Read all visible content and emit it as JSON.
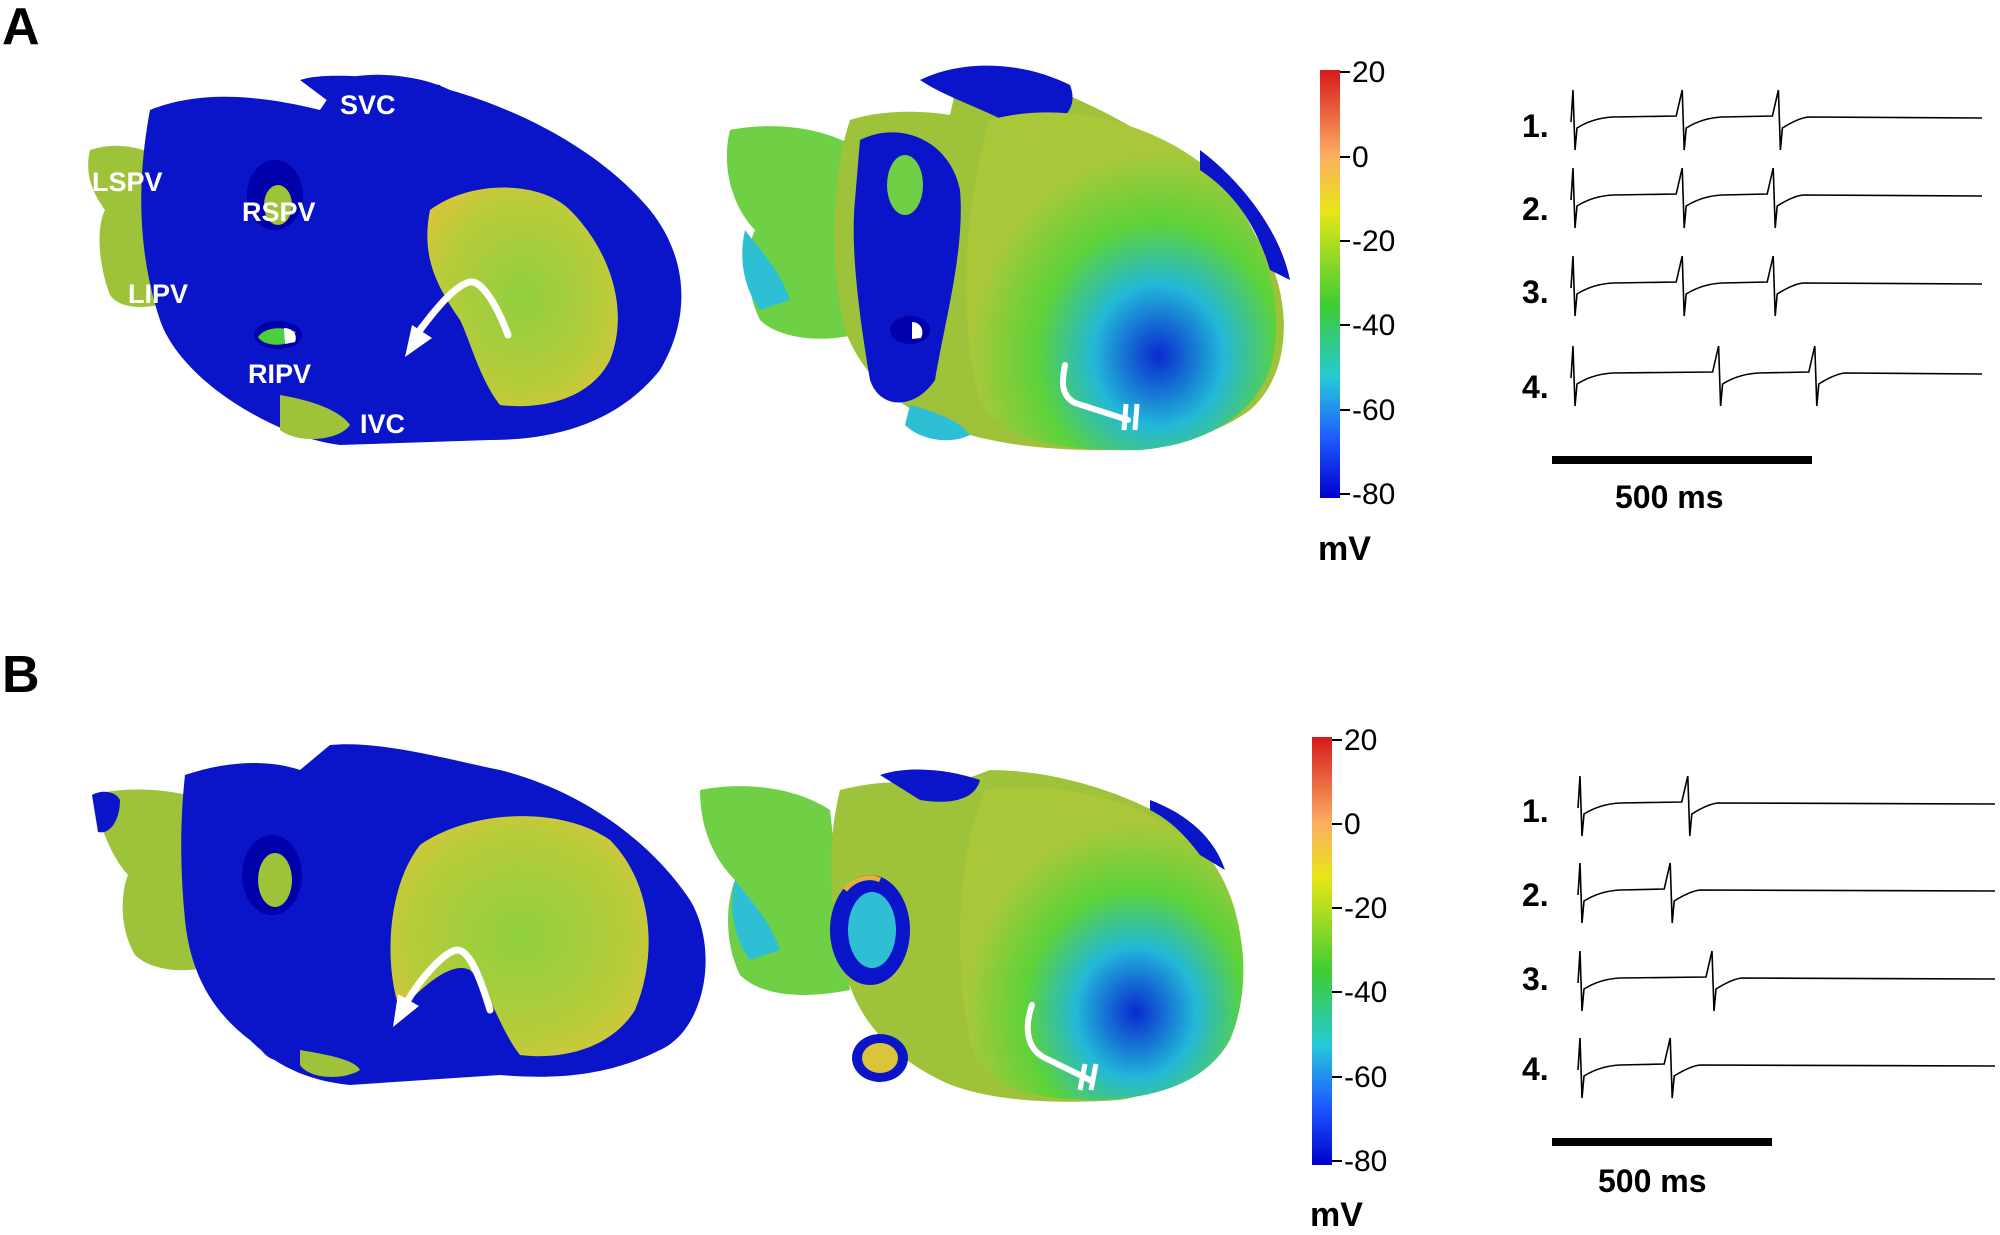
{
  "panels": [
    {
      "letter": "A",
      "anatomy_labels": [
        "SVC",
        "LSPV",
        "RSPV",
        "LIPV",
        "RIPV",
        "IVC"
      ],
      "colorbar": {
        "ticks": [
          "20",
          "0",
          "-20",
          "-40",
          "-60",
          "-80"
        ],
        "unit": "mV"
      },
      "traces": {
        "labels": [
          "1.",
          "2.",
          "3.",
          "4."
        ],
        "spike_times_ms": [
          [
            0,
            210,
            395
          ],
          [
            0,
            210,
            385
          ],
          [
            0,
            210,
            385
          ],
          [
            0,
            280,
            465
          ]
        ]
      },
      "scale_bar": {
        "label": "500 ms",
        "value_ms": 500
      }
    },
    {
      "letter": "B",
      "colorbar": {
        "ticks": [
          "20",
          "0",
          "-20",
          "-40",
          "-60",
          "-80"
        ],
        "unit": "mV"
      },
      "traces": {
        "labels": [
          "1.",
          "2.",
          "3.",
          "4."
        ],
        "spike_times_ms": [
          [
            0,
            245
          ],
          [
            0,
            205
          ],
          [
            0,
            300
          ],
          [
            0,
            205
          ]
        ]
      },
      "scale_bar": {
        "label": "500 ms",
        "value_ms": 500
      }
    }
  ],
  "colors": {
    "membrane_scale": [
      "#d7191c",
      "#fdae61",
      "#e8e617",
      "#3dcc33",
      "#26c9d8",
      "#1e5bff",
      "#0000cc"
    ],
    "resting_tissue": "#0a14c8",
    "excited_tissue": "#9ec23a",
    "arrow": "#ffffff"
  }
}
